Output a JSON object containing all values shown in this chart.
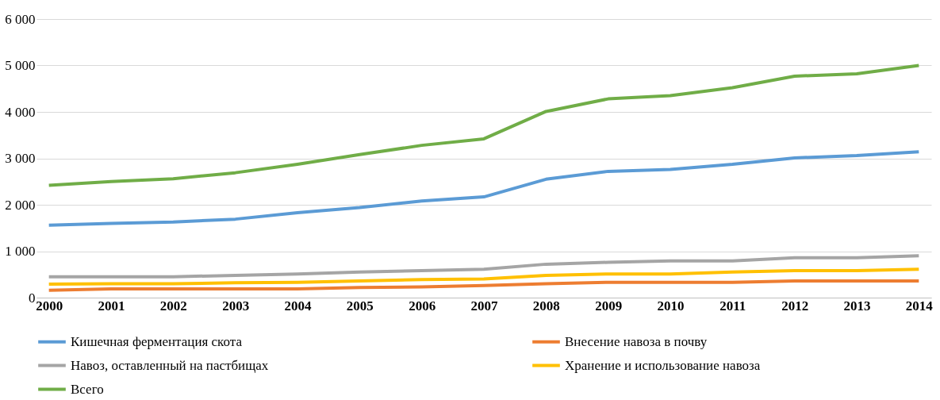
{
  "chart_data": {
    "type": "line",
    "categories": [
      "2000",
      "2001",
      "2002",
      "2003",
      "2004",
      "2005",
      "2006",
      "2007",
      "2008",
      "2009",
      "2010",
      "2011",
      "2012",
      "2013",
      "2014"
    ],
    "series": [
      {
        "name": "Кишечная ферментация скота",
        "color": "#5b9bd5",
        "values": [
          1560,
          1600,
          1630,
          1690,
          1830,
          1940,
          2080,
          2170,
          2550,
          2720,
          2760,
          2870,
          3010,
          3060,
          3140
        ]
      },
      {
        "name": "Внесение  навоза в почву",
        "color": "#ed7d31",
        "values": [
          160,
          190,
          190,
          190,
          190,
          220,
          230,
          260,
          300,
          330,
          330,
          330,
          360,
          360,
          360
        ]
      },
      {
        "name": "Навоз, оставленный  на пастбищах",
        "color": "#a5a5a5",
        "values": [
          450,
          450,
          450,
          480,
          510,
          550,
          580,
          610,
          720,
          760,
          790,
          790,
          860,
          860,
          900
        ]
      },
      {
        "name": "Хранение и использование  навоза",
        "color": "#ffc000",
        "values": [
          290,
          300,
          300,
          320,
          330,
          360,
          390,
          400,
          480,
          510,
          510,
          550,
          580,
          580,
          610
        ]
      },
      {
        "name": "Всего",
        "color": "#70ad47",
        "values": [
          2420,
          2500,
          2560,
          2690,
          2870,
          3080,
          3280,
          3420,
          4010,
          4280,
          4350,
          4520,
          4770,
          4820,
          5000
        ]
      }
    ],
    "ylim": [
      0,
      6000
    ],
    "yticks": [
      0,
      {
        "value": 1000,
        "label": "1 000"
      },
      {
        "value": 2000,
        "label": "2 000"
      },
      {
        "value": 3000,
        "label": "3 000"
      },
      {
        "value": 4000,
        "label": "4 000"
      },
      {
        "value": 5000,
        "label": "5 000"
      },
      {
        "value": 6000,
        "label": "6 000"
      }
    ],
    "grid": "y",
    "legend": "bottom",
    "marker": "none",
    "line_style": "solid"
  }
}
